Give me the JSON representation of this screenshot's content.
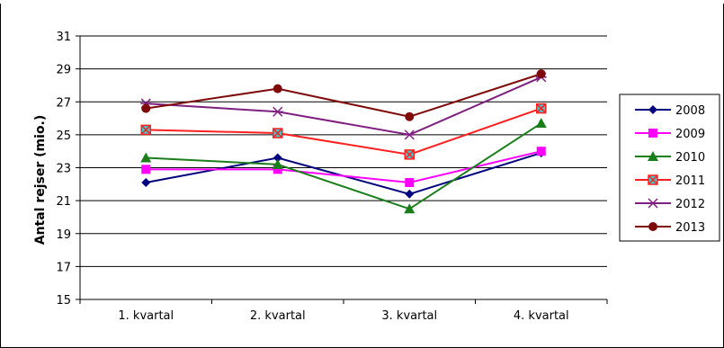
{
  "chart_data": {
    "type": "line",
    "title": "",
    "xlabel": "",
    "ylabel": "Antal rejser (mio.)",
    "categories": [
      "1. kvartal",
      "2. kvartal",
      "3. kvartal",
      "4. kvartal"
    ],
    "ylim": [
      15,
      31
    ],
    "yticks": [
      15,
      17,
      19,
      21,
      23,
      25,
      27,
      29,
      31
    ],
    "grid": true,
    "legend_position": "right",
    "series": [
      {
        "name": "2008",
        "values": [
          22.1,
          23.6,
          21.4,
          23.9
        ],
        "color": "#00007f",
        "marker": "diamond"
      },
      {
        "name": "2009",
        "values": [
          22.9,
          22.9,
          22.1,
          24.0
        ],
        "color": "#ff00ff",
        "marker": "square"
      },
      {
        "name": "2010",
        "values": [
          23.6,
          23.2,
          20.5,
          25.7
        ],
        "color": "#1a7f1a",
        "marker": "triangle"
      },
      {
        "name": "2011",
        "values": [
          25.3,
          25.1,
          23.8,
          26.6
        ],
        "color": "#ff2020",
        "marker": "square-x"
      },
      {
        "name": "2012",
        "values": [
          26.9,
          26.4,
          25.0,
          28.5
        ],
        "color": "#7f1f7f",
        "marker": "star"
      },
      {
        "name": "2013",
        "values": [
          26.6,
          27.8,
          26.1,
          28.7
        ],
        "color": "#7f0a0a",
        "marker": "circle"
      }
    ]
  }
}
